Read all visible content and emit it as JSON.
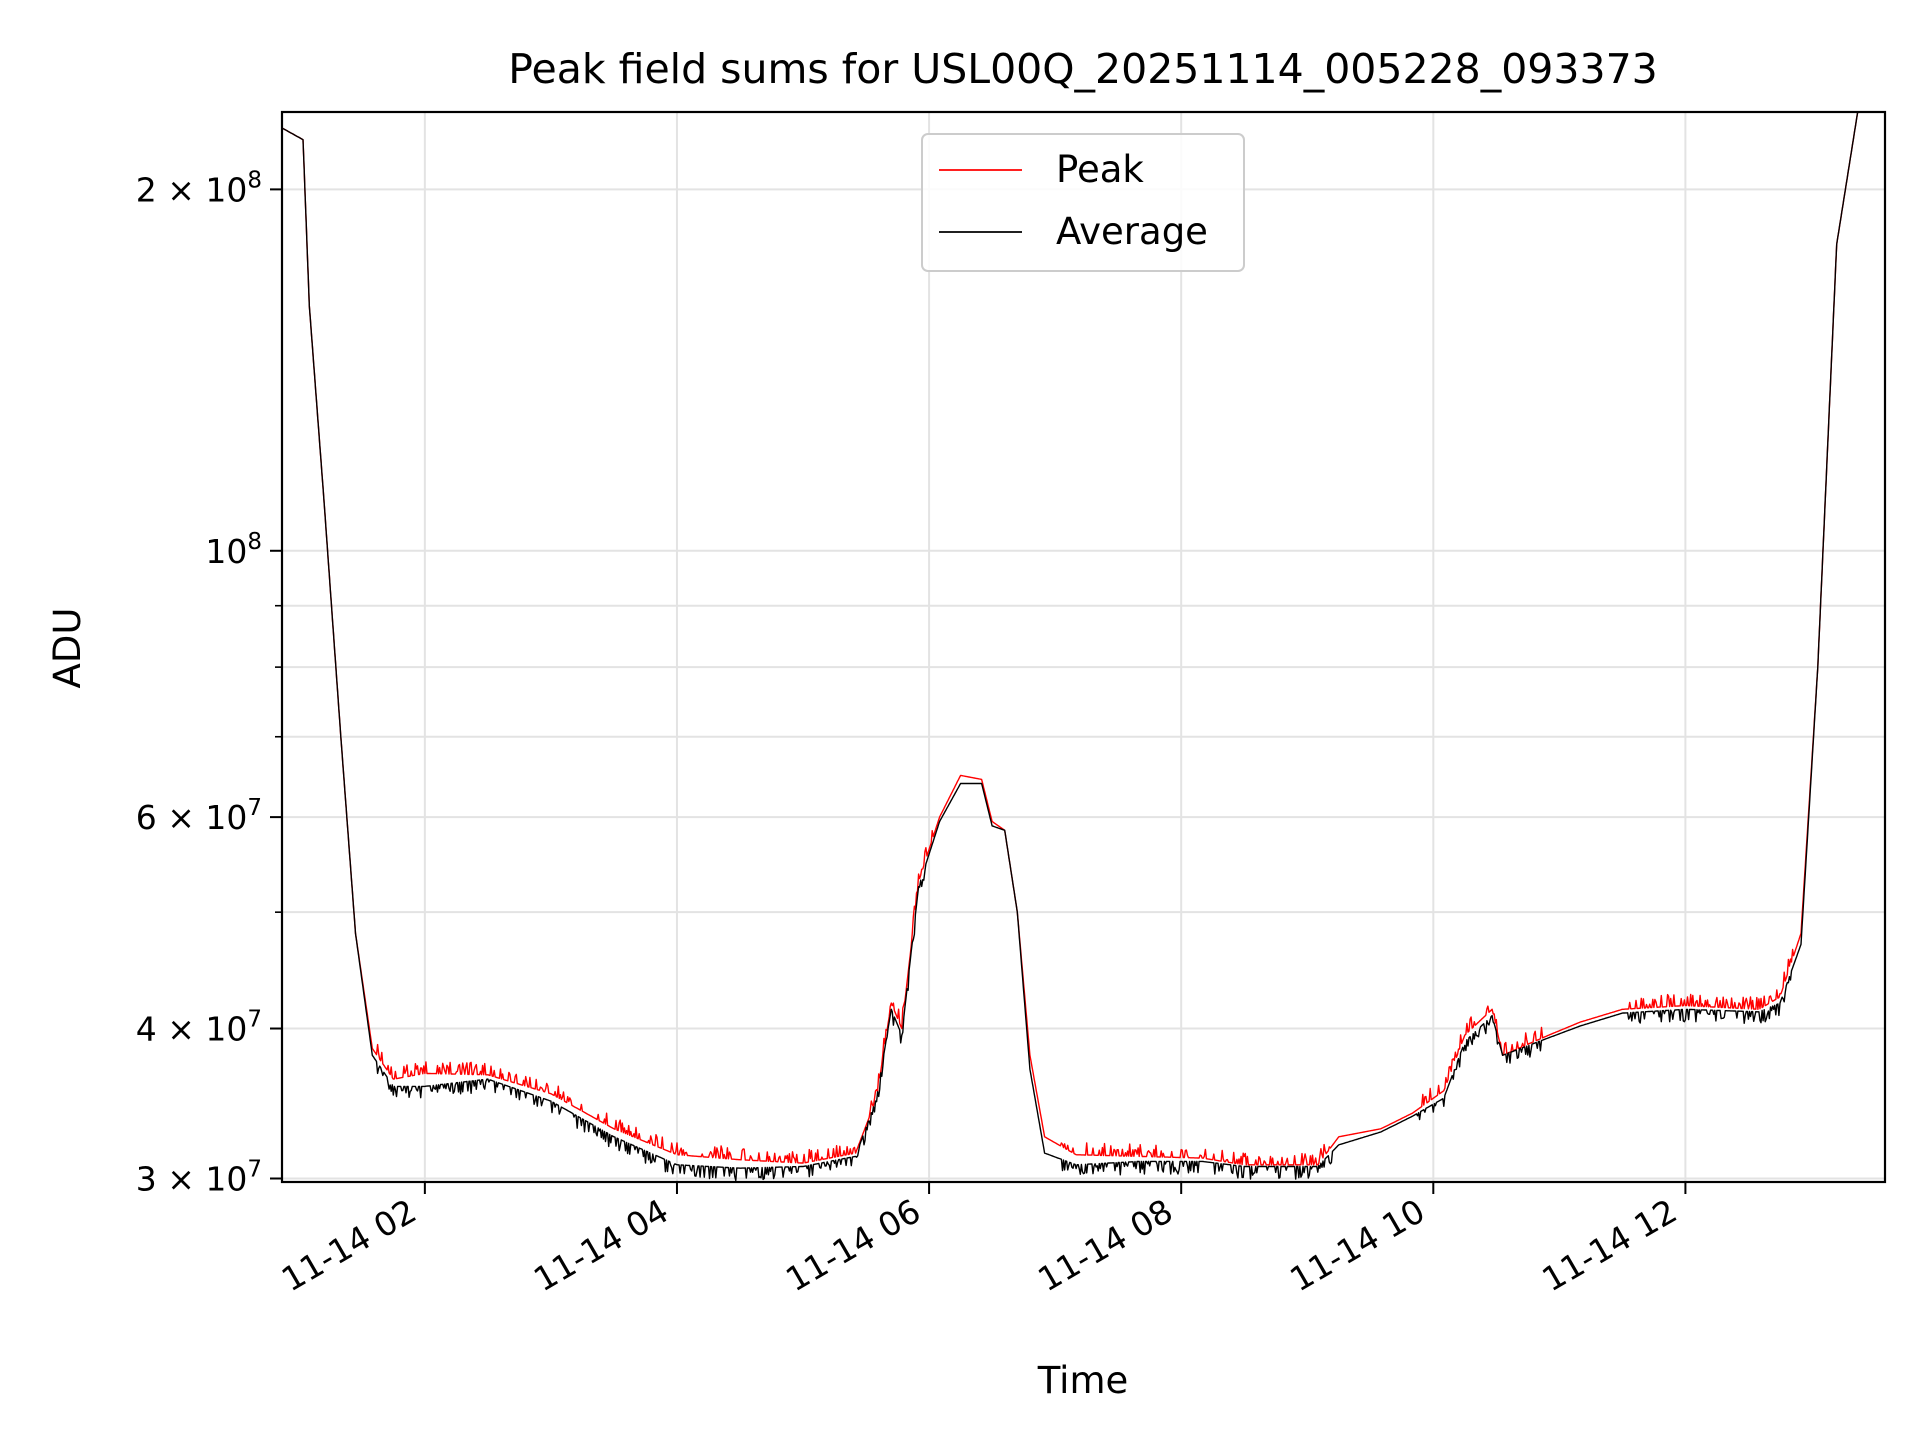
{
  "chart_data": {
    "type": "line",
    "title": "Peak field sums for USL00Q_20251114_005228_093373",
    "xlabel": "Time",
    "ylabel": "ADU",
    "y_scale": "log",
    "x_range": [
      "2025-11-14 00:52",
      "2025-11-14 13:35"
    ],
    "ylim": [
      29800000,
      232000000
    ],
    "grid": true,
    "legend_position": "upper center",
    "x_ticks": [
      {
        "t": "2025-11-14 02:00",
        "label": "11-14 02"
      },
      {
        "t": "2025-11-14 04:00",
        "label": "11-14 04"
      },
      {
        "t": "2025-11-14 06:00",
        "label": "11-14 06"
      },
      {
        "t": "2025-11-14 08:00",
        "label": "11-14 08"
      },
      {
        "t": "2025-11-14 10:00",
        "label": "11-14 10"
      },
      {
        "t": "2025-11-14 12:00",
        "label": "11-14 12"
      }
    ],
    "y_major_ticks": [
      {
        "v": 30000000,
        "base": "3 × 10",
        "exp": "7"
      },
      {
        "v": 40000000,
        "base": "4 × 10",
        "exp": "7"
      },
      {
        "v": 60000000,
        "base": "6 × 10",
        "exp": "7"
      },
      {
        "v": 100000000,
        "base": "10",
        "exp": "8"
      },
      {
        "v": 200000000,
        "base": "2 × 10",
        "exp": "8"
      }
    ],
    "y_minor_ticks": [
      50000000,
      70000000,
      80000000,
      90000000
    ],
    "series": [
      {
        "name": "Peak",
        "color": "#ff0000",
        "jitter": "up",
        "points": [
          [
            "2025-11-14 00:52",
            225000000
          ],
          [
            "2025-11-14 01:02",
            220000000
          ],
          [
            "2025-11-14 01:05",
            160000000
          ],
          [
            "2025-11-14 01:12",
            110000000
          ],
          [
            "2025-11-14 01:20",
            70000000
          ],
          [
            "2025-11-14 01:27",
            48000000
          ],
          [
            "2025-11-14 01:35",
            38500000
          ],
          [
            "2025-11-14 01:45",
            36300000
          ],
          [
            "2025-11-14 02:00",
            36700000
          ],
          [
            "2025-11-14 02:30",
            36600000
          ],
          [
            "2025-11-14 03:00",
            35300000
          ],
          [
            "2025-11-14 03:30",
            33000000
          ],
          [
            "2025-11-14 04:00",
            31400000
          ],
          [
            "2025-11-14 04:30",
            31100000
          ],
          [
            "2025-11-14 05:00",
            30900000
          ],
          [
            "2025-11-14 05:25",
            31500000
          ],
          [
            "2025-11-14 05:35",
            35000000
          ],
          [
            "2025-11-14 05:42",
            42000000
          ],
          [
            "2025-11-14 05:47",
            40000000
          ],
          [
            "2025-11-14 05:55",
            53000000
          ],
          [
            "2025-11-14 06:05",
            60000000
          ],
          [
            "2025-11-14 06:15",
            65000000
          ],
          [
            "2025-11-14 06:25",
            64500000
          ],
          [
            "2025-11-14 06:30",
            59500000
          ],
          [
            "2025-11-14 06:36",
            58500000
          ],
          [
            "2025-11-14 06:42",
            50000000
          ],
          [
            "2025-11-14 06:48",
            38000000
          ],
          [
            "2025-11-14 06:55",
            32500000
          ],
          [
            "2025-11-14 07:10",
            31400000
          ],
          [
            "2025-11-14 07:40",
            31300000
          ],
          [
            "2025-11-14 08:10",
            31200000
          ],
          [
            "2025-11-14 08:30",
            30800000
          ],
          [
            "2025-11-14 09:05",
            30800000
          ],
          [
            "2025-11-14 09:15",
            32500000
          ],
          [
            "2025-11-14 09:35",
            33000000
          ],
          [
            "2025-11-14 09:50",
            34000000
          ],
          [
            "2025-11-14 10:05",
            35500000
          ],
          [
            "2025-11-14 10:15",
            39500000
          ],
          [
            "2025-11-14 10:28",
            41500000
          ],
          [
            "2025-11-14 10:33",
            38000000
          ],
          [
            "2025-11-14 10:55",
            39500000
          ],
          [
            "2025-11-14 11:10",
            40500000
          ],
          [
            "2025-11-14 11:30",
            41500000
          ],
          [
            "2025-11-14 12:00",
            41800000
          ],
          [
            "2025-11-14 12:35",
            41500000
          ],
          [
            "2025-11-14 12:45",
            42500000
          ],
          [
            "2025-11-14 12:55",
            48000000
          ],
          [
            "2025-11-14 13:03",
            80000000
          ],
          [
            "2025-11-14 13:12",
            180000000
          ],
          [
            "2025-11-14 13:22",
            232000000
          ]
        ]
      },
      {
        "name": "Average",
        "color": "#000000",
        "jitter": "down",
        "points": [
          [
            "2025-11-14 00:52",
            225000000
          ],
          [
            "2025-11-14 01:02",
            220000000
          ],
          [
            "2025-11-14 01:05",
            160000000
          ],
          [
            "2025-11-14 01:12",
            110000000
          ],
          [
            "2025-11-14 01:20",
            70000000
          ],
          [
            "2025-11-14 01:27",
            48000000
          ],
          [
            "2025-11-14 01:35",
            38000000
          ],
          [
            "2025-11-14 01:45",
            35800000
          ],
          [
            "2025-11-14 02:00",
            35800000
          ],
          [
            "2025-11-14 02:30",
            36300000
          ],
          [
            "2025-11-14 03:00",
            34800000
          ],
          [
            "2025-11-14 03:30",
            32500000
          ],
          [
            "2025-11-14 04:00",
            30800000
          ],
          [
            "2025-11-14 04:30",
            30600000
          ],
          [
            "2025-11-14 05:00",
            30700000
          ],
          [
            "2025-11-14 05:25",
            31300000
          ],
          [
            "2025-11-14 05:35",
            35000000
          ],
          [
            "2025-11-14 05:42",
            41500000
          ],
          [
            "2025-11-14 05:47",
            39500000
          ],
          [
            "2025-11-14 05:55",
            52500000
          ],
          [
            "2025-11-14 06:05",
            59500000
          ],
          [
            "2025-11-14 06:15",
            64000000
          ],
          [
            "2025-11-14 06:25",
            64000000
          ],
          [
            "2025-11-14 06:30",
            59000000
          ],
          [
            "2025-11-14 06:36",
            58500000
          ],
          [
            "2025-11-14 06:42",
            50000000
          ],
          [
            "2025-11-14 06:48",
            37000000
          ],
          [
            "2025-11-14 06:55",
            31500000
          ],
          [
            "2025-11-14 07:10",
            30800000
          ],
          [
            "2025-11-14 07:40",
            31000000
          ],
          [
            "2025-11-14 08:10",
            31000000
          ],
          [
            "2025-11-14 08:30",
            30700000
          ],
          [
            "2025-11-14 09:05",
            30700000
          ],
          [
            "2025-11-14 09:15",
            32000000
          ],
          [
            "2025-11-14 09:35",
            32800000
          ],
          [
            "2025-11-14 09:50",
            33800000
          ],
          [
            "2025-11-14 10:05",
            35000000
          ],
          [
            "2025-11-14 10:15",
            39000000
          ],
          [
            "2025-11-14 10:28",
            41000000
          ],
          [
            "2025-11-14 10:33",
            38000000
          ],
          [
            "2025-11-14 10:55",
            39300000
          ],
          [
            "2025-11-14 11:10",
            40200000
          ],
          [
            "2025-11-14 11:30",
            41200000
          ],
          [
            "2025-11-14 12:00",
            41500000
          ],
          [
            "2025-11-14 12:35",
            41300000
          ],
          [
            "2025-11-14 12:45",
            42000000
          ],
          [
            "2025-11-14 12:55",
            47000000
          ],
          [
            "2025-11-14 13:03",
            80000000
          ],
          [
            "2025-11-14 13:12",
            180000000
          ],
          [
            "2025-11-14 13:22",
            232000000
          ]
        ]
      }
    ]
  }
}
